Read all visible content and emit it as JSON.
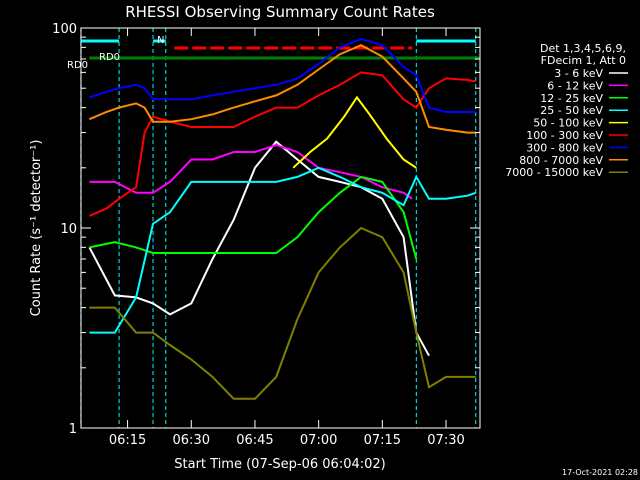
{
  "chart_data": {
    "type": "line",
    "title": "RHESSI Observing Summary Count Rates",
    "xlabel": "Start Time (07-Sep-06 06:04:02)",
    "ylabel": "Count Rate (s⁻¹ detector⁻¹)",
    "y_scale": "log",
    "ylim": [
      1,
      100
    ],
    "xlim": [
      "06:04:02",
      "07:38:00"
    ],
    "x_ticks": [
      "06:15",
      "06:30",
      "06:45",
      "07:00",
      "07:15",
      "07:30"
    ],
    "y_ticks": [
      "1",
      "10",
      "100"
    ],
    "legend_header": [
      "Det 1,3,4,5,6,9,",
      "FDecim 1, Att 0"
    ],
    "legend_position": "right",
    "timestamp": "17-Oct-2021 02:28",
    "annotations": [
      {
        "text": "N",
        "x": "06:17"
      },
      {
        "text": "RD0",
        "x": "06:08"
      },
      {
        "text": "RD0",
        "x": "06:07"
      }
    ],
    "spacecraft_flags": {
      "night": [
        [
          "06:04",
          "06:13"
        ],
        [
          "06:21",
          "06:24"
        ],
        [
          "07:23",
          "07:37"
        ]
      ],
      "rd0": [
        [
          "06:06",
          "07:38"
        ]
      ],
      "attenuator_red": [
        [
          "06:26",
          "07:22"
        ]
      ]
    },
    "series": [
      {
        "name": "3 - 6 keV",
        "color": "#ffffff",
        "x": [
          "06:06",
          "06:12",
          "06:17",
          "06:21",
          "06:25",
          "06:30",
          "06:35",
          "06:40",
          "06:45",
          "06:50",
          "06:55",
          "07:00",
          "07:05",
          "07:10",
          "07:15",
          "07:20",
          "07:23",
          "07:26"
        ],
        "y": [
          8,
          4.6,
          4.5,
          4.2,
          3.7,
          4.2,
          7,
          11,
          20,
          27,
          22,
          18,
          17,
          16,
          14,
          9,
          3,
          2.3
        ]
      },
      {
        "name": "6 - 12 keV",
        "color": "#ff00ff",
        "x": [
          "06:06",
          "06:12",
          "06:17",
          "06:21",
          "06:25",
          "06:30",
          "06:35",
          "06:40",
          "06:45",
          "06:50",
          "06:55",
          "07:00",
          "07:05",
          "07:10",
          "07:15",
          "07:20",
          "07:22"
        ],
        "y": [
          17,
          17,
          15,
          15,
          17,
          22,
          22,
          24,
          24,
          26,
          24,
          20,
          19,
          18,
          16,
          15,
          14
        ]
      },
      {
        "name": "12 - 25 keV",
        "color": "#00ff00",
        "x": [
          "06:06",
          "06:12",
          "06:17",
          "06:21",
          "06:25",
          "06:30",
          "06:40",
          "06:50",
          "06:55",
          "07:00",
          "07:05",
          "07:10",
          "07:15",
          "07:20",
          "07:23"
        ],
        "y": [
          8,
          8.5,
          8,
          7.5,
          7.5,
          7.5,
          7.5,
          7.5,
          9,
          12,
          15,
          18,
          17,
          12,
          7
        ]
      },
      {
        "name": "25 - 50 keV",
        "color": "#00ffff",
        "x": [
          "06:06",
          "06:12",
          "06:17",
          "06:21",
          "06:25",
          "06:30",
          "06:40",
          "06:50",
          "06:55",
          "07:00",
          "07:05",
          "07:10",
          "07:15",
          "07:20",
          "07:23",
          "07:26",
          "07:30",
          "07:35",
          "07:37"
        ],
        "y": [
          3,
          3,
          4.5,
          10.5,
          12,
          17,
          17,
          17,
          18,
          20,
          18,
          16,
          15,
          13,
          18,
          14,
          14,
          14.5,
          15
        ]
      },
      {
        "name": "50 - 100 keV",
        "color": "#ffff00",
        "x": [
          "06:54",
          "06:58",
          "07:02",
          "07:06",
          "07:09",
          "07:12",
          "07:16",
          "07:20",
          "07:23"
        ],
        "y": [
          20,
          24,
          28,
          36,
          45,
          37,
          28,
          22,
          20
        ]
      },
      {
        "name": "100 - 300 keV",
        "color": "#ff0000",
        "x": [
          "06:06",
          "06:10",
          "06:13",
          "06:17",
          "06:19",
          "06:21",
          "06:25",
          "06:30",
          "06:40",
          "06:45",
          "06:50",
          "06:55",
          "07:00",
          "07:05",
          "07:10",
          "07:15",
          "07:20",
          "07:23",
          "07:26",
          "07:30",
          "07:35",
          "07:37"
        ],
        "y": [
          11.5,
          12.5,
          14,
          16,
          30,
          36,
          34,
          32,
          32,
          36,
          40,
          40,
          46,
          52,
          60,
          58,
          44,
          40,
          50,
          56,
          55,
          54
        ]
      },
      {
        "name": "300 - 800 keV",
        "color": "#0000ff",
        "x": [
          "06:06",
          "06:10",
          "06:13",
          "06:17",
          "06:19",
          "06:21",
          "06:25",
          "06:30",
          "06:35",
          "06:40",
          "06:45",
          "06:50",
          "06:55",
          "07:00",
          "07:05",
          "07:10",
          "07:15",
          "07:20",
          "07:23",
          "07:26",
          "07:30",
          "07:35",
          "07:37"
        ],
        "y": [
          45,
          48,
          50,
          52,
          50,
          44,
          44,
          44,
          46,
          48,
          50,
          52,
          56,
          66,
          80,
          88,
          82,
          64,
          58,
          40,
          38,
          38,
          38
        ]
      },
      {
        "name": "800 - 7000 keV",
        "color": "#ff8c00",
        "x": [
          "06:06",
          "06:10",
          "06:13",
          "06:17",
          "06:19",
          "06:21",
          "06:25",
          "06:30",
          "06:35",
          "06:40",
          "06:45",
          "06:50",
          "06:55",
          "07:00",
          "07:05",
          "07:10",
          "07:15",
          "07:20",
          "07:23",
          "07:26",
          "07:30",
          "07:35",
          "07:37"
        ],
        "y": [
          35,
          38,
          40,
          42,
          40,
          34,
          34,
          35,
          37,
          40,
          43,
          46,
          52,
          62,
          74,
          82,
          72,
          56,
          48,
          32,
          31,
          30,
          30
        ]
      },
      {
        "name": "7000 - 15000 keV",
        "color": "#808000",
        "x": [
          "06:06",
          "06:12",
          "06:17",
          "06:21",
          "06:25",
          "06:30",
          "06:35",
          "06:40",
          "06:45",
          "06:50",
          "06:55",
          "07:00",
          "07:05",
          "07:10",
          "07:15",
          "07:20",
          "07:23",
          "07:26",
          "07:30",
          "07:37"
        ],
        "y": [
          4,
          4,
          3,
          3,
          2.6,
          2.2,
          1.8,
          1.4,
          1.4,
          1.8,
          3.5,
          6,
          8,
          10,
          9,
          6,
          3,
          1.6,
          1.8,
          1.8
        ]
      }
    ]
  }
}
